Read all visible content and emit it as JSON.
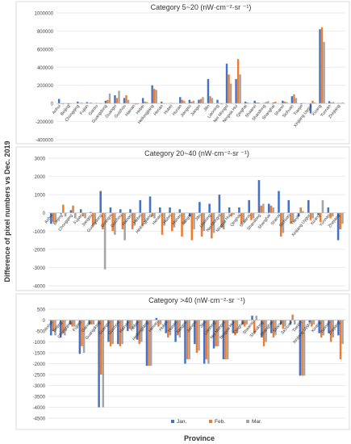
{
  "figure": {
    "ylabel": "Difference of pixel numbers vs Dec. 2019",
    "xlabel": "Province"
  },
  "series": [
    {
      "name": "Jan.",
      "color": "#4472C4"
    },
    {
      "name": "Feb.",
      "color": "#ED7D31"
    },
    {
      "name": "Mar.",
      "color": "#A5A5A5"
    }
  ],
  "chart_data": [
    {
      "type": "bar",
      "title": "Category 5~20 (nW·cm⁻²·sr ⁻¹)",
      "ylim": [
        -400000,
        1000000
      ],
      "yticks": [
        -400000,
        -200000,
        0,
        200000,
        400000,
        600000,
        800000,
        1000000
      ],
      "ytick_labels": [
        "-400000",
        "-200000",
        "0",
        "200000",
        "400000",
        "600000",
        "800000",
        "1000000"
      ],
      "categories": [
        "Anhui",
        "Beijing",
        "Chongqing",
        "Fujian",
        "Gansu",
        "Guangdong",
        "Guangxi",
        "Guizhou",
        "Hainan",
        "Hebei",
        "Heilongjiang",
        "Henan",
        "Hubei",
        "Hunan",
        "Jiangsu",
        "Jiangxi",
        "Jilin",
        "Liaoning",
        "Nei Mongol",
        "Ningxia Hui",
        "Qinghai",
        "Shaanxi",
        "Shandong",
        "Shanghai",
        "Shanxi",
        "Sichuan",
        "Tianjin",
        "Xinjiang Uygur",
        "Xizang",
        "Yunnan",
        "Zhejiang"
      ],
      "series": [
        {
          "name": "Jan.",
          "values": [
            50000,
            -10000,
            20000,
            15000,
            5000,
            30000,
            90000,
            60000,
            -5000,
            60000,
            200000,
            20000,
            5000,
            70000,
            40000,
            40000,
            270000,
            40000,
            440000,
            270000,
            20000,
            30000,
            5000,
            10000,
            30000,
            80000,
            -10000,
            -110000,
            820000,
            25000,
            5000
          ]
        },
        {
          "name": "Feb.",
          "values": [
            -5000,
            -5000,
            5000,
            5000,
            0,
            40000,
            60000,
            90000,
            -10000,
            20000,
            160000,
            -5000,
            -5000,
            40000,
            20000,
            50000,
            80000,
            5000,
            320000,
            490000,
            10000,
            10000,
            15000,
            20000,
            20000,
            100000,
            5000,
            30000,
            840000,
            10000,
            5000
          ]
        },
        {
          "name": "Mar.",
          "values": [
            -10000,
            0,
            10000,
            10000,
            -5000,
            110000,
            140000,
            40000,
            -10000,
            15000,
            150000,
            0,
            0,
            30000,
            30000,
            70000,
            60000,
            -10000,
            220000,
            320000,
            5000,
            10000,
            25000,
            0,
            15000,
            60000,
            0,
            10000,
            680000,
            15000,
            10000
          ]
        }
      ]
    },
    {
      "type": "bar",
      "title": "Category 20~40 (nW·cm⁻²·sr ⁻¹)",
      "ylim": [
        -4000,
        3000
      ],
      "yticks": [
        -4000,
        -3000,
        -2000,
        -1000,
        0,
        1000,
        2000,
        3000
      ],
      "ytick_labels": [
        "-4000",
        "-3000",
        "-2000",
        "-1000",
        "0",
        "1000",
        "2000",
        "3000"
      ],
      "categories": [
        "Anhui",
        "Beijing",
        "Chongqing",
        "Fujian",
        "Jiangsu",
        "Guangdong",
        "Guangxi",
        "Guizhou",
        "Hainan",
        "Hebei",
        "Heilongjiang",
        "Henan",
        "Hubei",
        "Hunan",
        "Jiangxi",
        "Jilin",
        "Liaoning",
        "Nei Mongol",
        "Ningxia Hui",
        "Qinghai",
        "Shaanxi",
        "Shandong",
        "Shanghai",
        "Shanxi",
        "Sichuan",
        "Tianjin",
        "Xinjiang Uygur",
        "Xizang",
        "Yunnan",
        "Zhejiang"
      ],
      "series": [
        {
          "name": "Jan.",
          "values": [
            -600,
            -50,
            150,
            200,
            50,
            1200,
            300,
            200,
            200,
            700,
            900,
            300,
            300,
            200,
            -200,
            600,
            500,
            1000,
            300,
            300,
            700,
            1800,
            500,
            1200,
            700,
            -200,
            700,
            -100,
            300,
            -1500
          ]
        },
        {
          "name": "Feb.",
          "values": [
            -500,
            450,
            400,
            -200,
            -700,
            -900,
            -1000,
            -900,
            -900,
            -700,
            -200,
            -1200,
            -1000,
            -1300,
            -1500,
            -1300,
            -1400,
            -800,
            -200,
            -600,
            -400,
            400,
            400,
            -1300,
            -600,
            300,
            -400,
            -500,
            -300,
            -900
          ]
        },
        {
          "name": "Mar.",
          "values": [
            -500,
            -200,
            -300,
            -300,
            -600,
            -3100,
            -1200,
            -1500,
            -700,
            -500,
            -300,
            -700,
            -800,
            -600,
            -900,
            -1000,
            -1100,
            -900,
            -100,
            -500,
            -300,
            500,
            300,
            -1100,
            -500,
            100,
            -300,
            700,
            -200,
            -600
          ]
        }
      ]
    },
    {
      "type": "bar",
      "title": "Category >40 (nW·cm⁻²·sr ⁻¹)",
      "ylim": [
        -4500,
        500
      ],
      "yticks": [
        -4500,
        -4000,
        -3500,
        -3000,
        -2500,
        -2000,
        -1500,
        -1000,
        -500,
        0,
        500
      ],
      "ytick_labels": [
        "-4500",
        "-4000",
        "-3500",
        "-3000",
        "-2500",
        "-2000",
        "-1500",
        "-1000",
        "-500",
        "0",
        "500"
      ],
      "categories": [
        "Anhui",
        "Beijing",
        "Chongqing",
        "Fujian",
        "Gansu",
        "Guangdong",
        "Guangxi",
        "Guizhou",
        "Hainan",
        "Hebei",
        "Heilongjiang",
        "Henan",
        "Hubei",
        "Hunan",
        "Jiangsu",
        "Jiangxi",
        "Jilin",
        "Liaoning",
        "Nei Mongol",
        "Ningxia Hui",
        "Qinghai",
        "Shaanxi",
        "Shandong",
        "Shanghai",
        "Shanxi",
        "Sichuan",
        "Tianjin",
        "Xinjiang Uygur",
        "Xizang",
        "Yunnan",
        "Zhejiang"
      ],
      "series": [
        {
          "name": "Jan.",
          "values": [
            -700,
            -800,
            -200,
            -1550,
            -200,
            -4000,
            -1000,
            -1100,
            -500,
            -900,
            -2100,
            100,
            -600,
            -1000,
            -2000,
            -1100,
            -2000,
            -1300,
            -1800,
            -600,
            -200,
            200,
            -800,
            -600,
            -200,
            -200,
            -2550,
            -100,
            -600,
            -600,
            -700
          ]
        },
        {
          "name": "Feb.",
          "values": [
            -500,
            -600,
            -300,
            -1200,
            -200,
            -2500,
            -1200,
            -1200,
            -400,
            -1100,
            -2100,
            -300,
            -800,
            -700,
            -1800,
            -1500,
            -1800,
            -1200,
            -1800,
            -700,
            -300,
            -600,
            -1200,
            -800,
            -400,
            250,
            -2550,
            -300,
            -800,
            -1000,
            -1800
          ]
        },
        {
          "name": "Mar.",
          "values": [
            -700,
            -700,
            -300,
            -1500,
            -200,
            -4000,
            -1100,
            -1100,
            -400,
            -1000,
            -2100,
            -200,
            -700,
            -800,
            -1800,
            -1400,
            -2000,
            -1200,
            -1800,
            -600,
            -200,
            200,
            -1000,
            -700,
            -300,
            -200,
            -2550,
            -200,
            -700,
            -800,
            -1100
          ]
        }
      ]
    }
  ]
}
